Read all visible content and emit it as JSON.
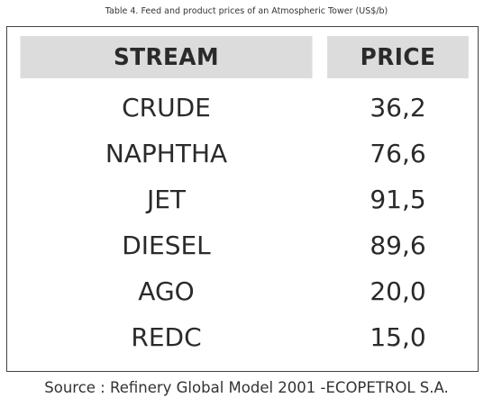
{
  "caption": "Table 4. Feed and product prices of an Atmospheric Tower (US$/b)",
  "table": {
    "headers": {
      "stream": "STREAM",
      "price": "PRICE"
    },
    "rows": [
      {
        "stream": "CRUDE",
        "price": "36,2"
      },
      {
        "stream": "NAPHTHA",
        "price": "76,6"
      },
      {
        "stream": "JET",
        "price": "91,5"
      },
      {
        "stream": "DIESEL",
        "price": "89,6"
      },
      {
        "stream": "AGO",
        "price": "20,0"
      },
      {
        "stream": "REDC",
        "price": "15,0"
      }
    ]
  },
  "source": "Source : Refinery Global Model 2001 -ECOPETROL S.A.",
  "colors": {
    "header_background": "#dcdcdc",
    "border": "#444444",
    "text": "#2a2a2a"
  }
}
